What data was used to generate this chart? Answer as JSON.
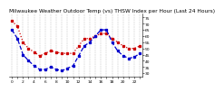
{
  "title": "Milwaukee Weather Outdoor Temp (vs) THSW Index per Hour (Last 24 Hours)",
  "yticks": [
    30,
    35,
    40,
    45,
    50,
    55,
    60,
    65,
    70,
    75
  ],
  "ylim": [
    27,
    78
  ],
  "background": "#ffffff",
  "grid_color": "#b0b0b0",
  "hours": [
    0,
    1,
    2,
    3,
    4,
    5,
    6,
    7,
    8,
    9,
    10,
    11,
    12,
    13,
    14,
    15,
    16,
    17,
    18,
    19,
    20,
    21,
    22,
    23
  ],
  "temp": [
    72,
    68,
    55,
    50,
    47,
    44,
    46,
    48,
    47,
    46,
    46,
    46,
    52,
    58,
    58,
    60,
    62,
    62,
    58,
    55,
    52,
    50,
    50,
    52
  ],
  "thsw": [
    65,
    58,
    45,
    40,
    36,
    33,
    33,
    35,
    33,
    32,
    34,
    36,
    44,
    52,
    55,
    60,
    65,
    65,
    55,
    48,
    44,
    42,
    43,
    46
  ],
  "temp_color": "#cc0000",
  "thsw_color": "#0000cc",
  "linewidth": 0.9,
  "markersize": 1.4,
  "title_fontsize": 4.2,
  "tick_fontsize": 3.2,
  "xlim": [
    -0.5,
    23.5
  ]
}
